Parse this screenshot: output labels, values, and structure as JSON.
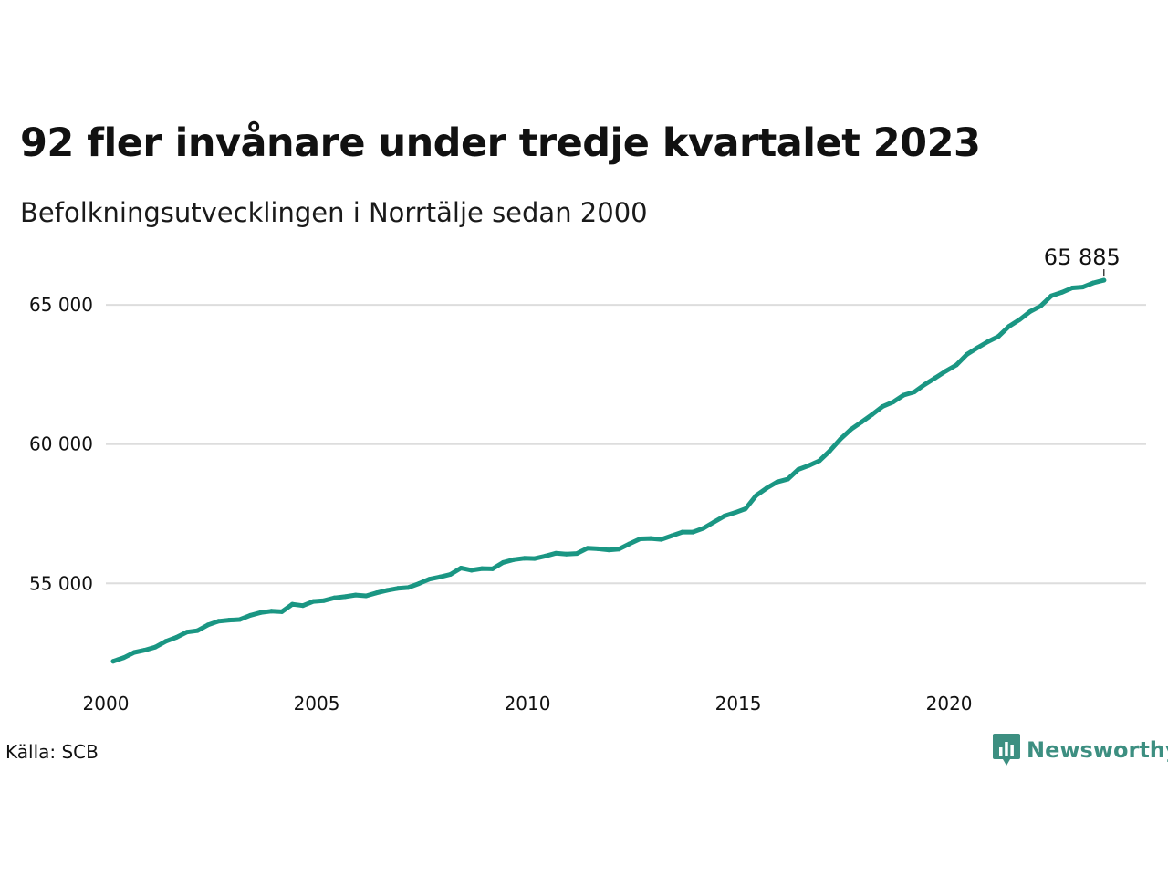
{
  "header": {
    "title": "92 fler invånare under tredje kvartalet 2023",
    "subtitle": "Befolkningsutvecklingen i Norrtälje sedan 2000"
  },
  "footer": {
    "source": "Källa: SCB",
    "brand": "Newsworthy"
  },
  "colors": {
    "line": "#1a9683",
    "grid": "#dddddd",
    "text": "#111111",
    "brand": "#3d8f81"
  },
  "chart_data": {
    "type": "line",
    "title": "92 fler invånare under tredje kvartalet 2023",
    "subtitle": "Befolkningsutvecklingen i Norrtälje sedan 2000",
    "xlabel": "",
    "ylabel": "",
    "xlim": [
      2000,
      2024.5
    ],
    "ylim": [
      51700,
      67100
    ],
    "x_ticks": [
      2000,
      2005,
      2010,
      2015,
      2020
    ],
    "x_tick_labels": [
      "2000",
      "2005",
      "2010",
      "2015",
      "2020"
    ],
    "y_ticks": [
      55000,
      60000,
      65000
    ],
    "y_tick_labels": [
      "55 000",
      "60 000",
      "65 000"
    ],
    "grid": true,
    "legend": "none",
    "end_label": "65 885",
    "series": [
      {
        "x": [
          2000.0,
          2000.25,
          2000.5,
          2000.75,
          2001.0,
          2001.25,
          2001.5,
          2001.75,
          2002.0,
          2002.25,
          2002.5,
          2002.75,
          2003.0,
          2003.25,
          2003.5,
          2003.75,
          2004.0,
          2004.25,
          2004.5,
          2004.75,
          2005.0,
          2005.25,
          2005.5,
          2005.75,
          2006.0,
          2006.25,
          2006.5,
          2006.75,
          2007.0,
          2007.25,
          2007.5,
          2007.75,
          2008.0,
          2008.25,
          2008.5,
          2008.75,
          2009.0,
          2009.25,
          2009.5,
          2009.75,
          2010.0,
          2010.25,
          2010.5,
          2010.75,
          2011.0,
          2011.25,
          2011.5,
          2011.75,
          2012.0,
          2012.25,
          2012.5,
          2012.75,
          2013.0,
          2013.25,
          2013.5,
          2013.75,
          2014.0,
          2014.25,
          2014.5,
          2014.75,
          2015.0,
          2015.25,
          2015.5,
          2015.75,
          2016.0,
          2016.25,
          2016.5,
          2016.75,
          2017.0,
          2017.25,
          2017.5,
          2017.75,
          2018.0,
          2018.25,
          2018.5,
          2018.75,
          2019.0,
          2019.25,
          2019.5,
          2019.75,
          2020.0,
          2020.25,
          2020.5,
          2020.75,
          2021.0,
          2021.25,
          2021.5,
          2021.75,
          2022.0,
          2022.25,
          2022.5,
          2022.75,
          2023.0,
          2023.25,
          2023.5
        ],
        "values": [
          52200,
          52330,
          52520,
          52600,
          52710,
          52920,
          53060,
          53250,
          53300,
          53510,
          53640,
          53680,
          53700,
          53850,
          53950,
          54000,
          53980,
          54250,
          54200,
          54350,
          54380,
          54480,
          54520,
          54580,
          54550,
          54660,
          54750,
          54820,
          54850,
          54990,
          55150,
          55230,
          55320,
          55550,
          55470,
          55530,
          55520,
          55750,
          55850,
          55900,
          55890,
          55980,
          56080,
          56050,
          56070,
          56260,
          56240,
          56200,
          56230,
          56420,
          56600,
          56610,
          56580,
          56710,
          56840,
          56840,
          56980,
          57200,
          57420,
          57540,
          57680,
          58150,
          58420,
          58640,
          58740,
          59090,
          59230,
          59400,
          59760,
          60180,
          60530,
          60790,
          61060,
          61350,
          61510,
          61760,
          61870,
          62140,
          62380,
          62620,
          62840,
          63220,
          63460,
          63680,
          63870,
          64230,
          64470,
          64760,
          64960,
          65320,
          65450,
          65610,
          65640,
          65790,
          65885
        ]
      }
    ]
  }
}
